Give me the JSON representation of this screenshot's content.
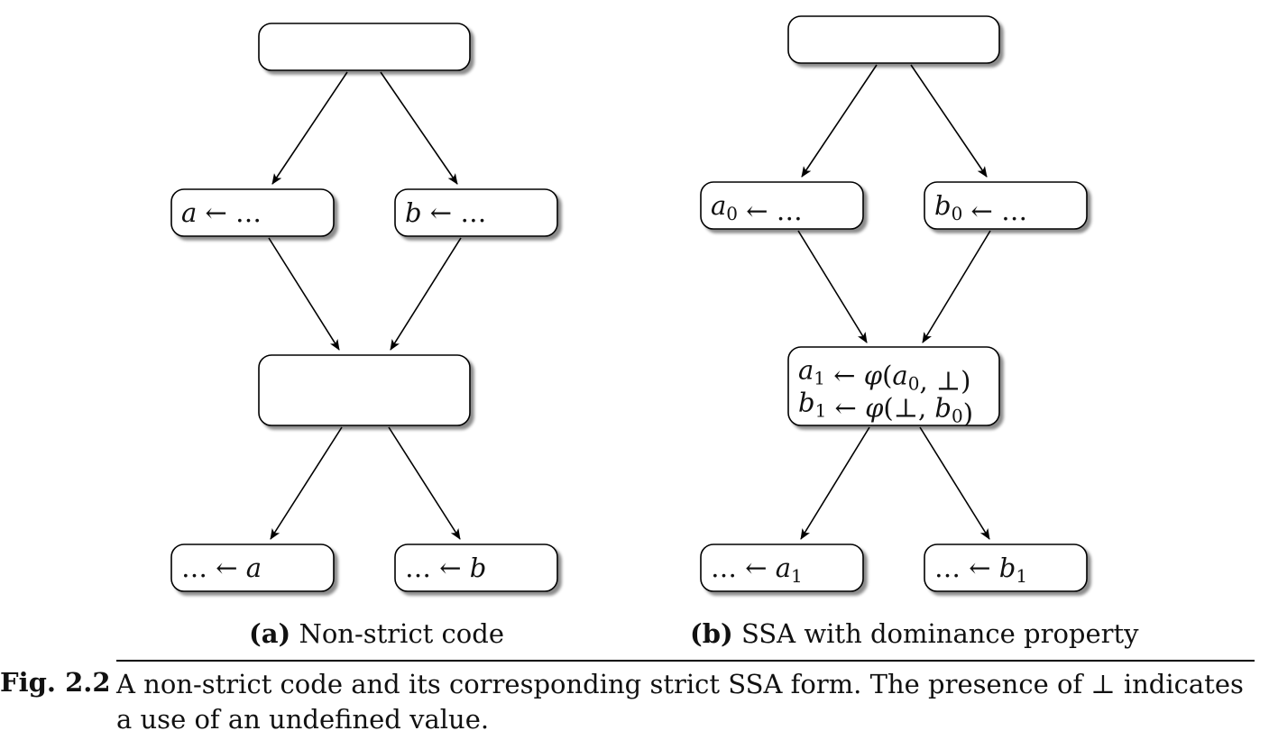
{
  "subfigures": [
    {
      "id": "a",
      "label": "(a)",
      "caption": "Non-strict code",
      "nodes": {
        "entry": {
          "lines": []
        },
        "left": {
          "lines": [
            "a ← …"
          ]
        },
        "right": {
          "lines": [
            "b ← …"
          ]
        },
        "join": {
          "lines": []
        },
        "use_left": {
          "lines": [
            "… ← a"
          ]
        },
        "use_right": {
          "lines": [
            "… ← b"
          ]
        }
      }
    },
    {
      "id": "b",
      "label": "(b)",
      "caption": "SSA with dominance property",
      "nodes": {
        "entry": {
          "lines": []
        },
        "left": {
          "lines": [
            "a0 ← …"
          ]
        },
        "right": {
          "lines": [
            "b0 ← …"
          ]
        },
        "join": {
          "lines": [
            "a1 ← φ(a0, ⊥)",
            "b1 ← φ(⊥, b0)"
          ]
        },
        "use_left": {
          "lines": [
            "… ← a1"
          ]
        },
        "use_right": {
          "lines": [
            "… ← b1"
          ]
        }
      }
    }
  ],
  "edges": [
    [
      "entry",
      "left"
    ],
    [
      "entry",
      "right"
    ],
    [
      "left",
      "join"
    ],
    [
      "right",
      "join"
    ],
    [
      "join",
      "use_left"
    ],
    [
      "join",
      "use_right"
    ]
  ],
  "figure": {
    "label": "Fig. 2.2",
    "caption": "A non-strict code and its corresponding strict SSA form. The presence of ⊥ indicates a use of an undefined value."
  }
}
